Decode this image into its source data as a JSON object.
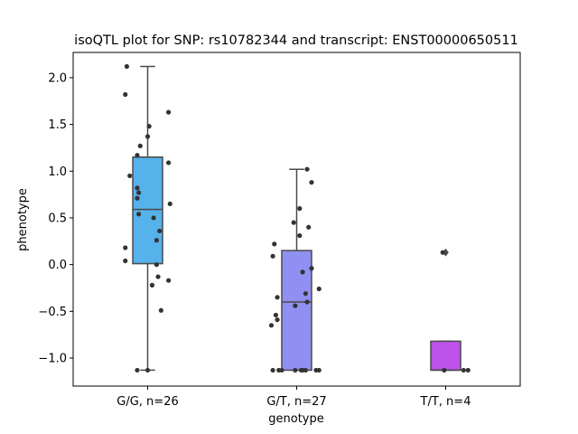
{
  "chart_data": {
    "type": "box",
    "title": "isoQTL plot for SNP: rs10782344 and transcript: ENST00000650511",
    "xlabel": "genotype",
    "ylabel": "phenotype",
    "ylim": [
      -1.3,
      2.27
    ],
    "yticks": [
      -1.0,
      -0.5,
      0.0,
      0.5,
      1.0,
      1.5,
      2.0
    ],
    "ytick_labels": [
      "−1.0",
      "−0.5",
      "0.0",
      "0.5",
      "1.0",
      "1.5",
      "2.0"
    ],
    "grid": false,
    "categories": [
      "G/G, n=26",
      "G/T, n=27",
      "T/T, n=4"
    ],
    "boxes": [
      {
        "category": "G/G, n=26",
        "color": "#55b2ea",
        "q1": 0.01,
        "median": 0.59,
        "q3": 1.15,
        "whisker_low": -1.13,
        "whisker_high": 2.12,
        "outliers": []
      },
      {
        "category": "G/T, n=27",
        "color": "#9090f2",
        "q1": -1.13,
        "median": -0.4,
        "q3": 0.15,
        "whisker_low": -1.13,
        "whisker_high": 1.02,
        "outliers": []
      },
      {
        "category": "T/T, n=4",
        "color": "#bd52eb",
        "q1": -1.13,
        "median": -1.13,
        "q3": -0.82,
        "whisker_low": -1.13,
        "whisker_high": -0.82,
        "outliers": [
          0.13
        ]
      }
    ],
    "points": [
      [
        {
          "dx": -0.14,
          "y": 2.12
        },
        {
          "dx": -0.15,
          "y": 1.82
        },
        {
          "dx": 0.14,
          "y": 1.63
        },
        {
          "dx": 0.01,
          "y": 1.48
        },
        {
          "dx": 0.0,
          "y": 1.37
        },
        {
          "dx": -0.05,
          "y": 1.27
        },
        {
          "dx": -0.07,
          "y": 1.17
        },
        {
          "dx": 0.14,
          "y": 1.09
        },
        {
          "dx": -0.12,
          "y": 0.95
        },
        {
          "dx": -0.07,
          "y": 0.82
        },
        {
          "dx": -0.06,
          "y": 0.77
        },
        {
          "dx": -0.07,
          "y": 0.71
        },
        {
          "dx": 0.15,
          "y": 0.65
        },
        {
          "dx": -0.06,
          "y": 0.54
        },
        {
          "dx": 0.04,
          "y": 0.5
        },
        {
          "dx": 0.08,
          "y": 0.36
        },
        {
          "dx": 0.06,
          "y": 0.26
        },
        {
          "dx": -0.15,
          "y": 0.18
        },
        {
          "dx": -0.15,
          "y": 0.04
        },
        {
          "dx": 0.06,
          "y": 0.0
        },
        {
          "dx": 0.07,
          "y": -0.13
        },
        {
          "dx": 0.14,
          "y": -0.17
        },
        {
          "dx": 0.03,
          "y": -0.22
        },
        {
          "dx": 0.09,
          "y": -0.49
        },
        {
          "dx": -0.07,
          "y": -1.13
        },
        {
          "dx": 0.0,
          "y": -1.13
        }
      ],
      [
        {
          "dx": 0.07,
          "y": 1.02
        },
        {
          "dx": 0.1,
          "y": 0.88
        },
        {
          "dx": 0.02,
          "y": 0.6
        },
        {
          "dx": -0.02,
          "y": 0.45
        },
        {
          "dx": 0.08,
          "y": 0.4
        },
        {
          "dx": 0.02,
          "y": 0.31
        },
        {
          "dx": -0.15,
          "y": 0.22
        },
        {
          "dx": -0.16,
          "y": 0.09
        },
        {
          "dx": 0.1,
          "y": -0.04
        },
        {
          "dx": 0.04,
          "y": -0.08
        },
        {
          "dx": 0.15,
          "y": -0.26
        },
        {
          "dx": 0.06,
          "y": -0.31
        },
        {
          "dx": -0.13,
          "y": -0.35
        },
        {
          "dx": 0.07,
          "y": -0.4
        },
        {
          "dx": -0.01,
          "y": -0.44
        },
        {
          "dx": -0.14,
          "y": -0.54
        },
        {
          "dx": -0.13,
          "y": -0.59
        },
        {
          "dx": -0.17,
          "y": -0.65
        },
        {
          "dx": -0.16,
          "y": -1.13
        },
        {
          "dx": -0.1,
          "y": -1.13
        },
        {
          "dx": -0.01,
          "y": -1.13
        },
        {
          "dx": 0.03,
          "y": -1.13
        },
        {
          "dx": 0.04,
          "y": -1.13
        },
        {
          "dx": 0.06,
          "y": -1.13
        },
        {
          "dx": 0.15,
          "y": -1.13
        },
        {
          "dx": -0.12,
          "y": -1.13
        },
        {
          "dx": 0.13,
          "y": -1.13
        }
      ],
      [
        {
          "dx": -0.02,
          "y": 0.13
        },
        {
          "dx": -0.01,
          "y": -1.13
        },
        {
          "dx": 0.12,
          "y": -1.13
        },
        {
          "dx": 0.15,
          "y": -1.13
        }
      ]
    ]
  }
}
